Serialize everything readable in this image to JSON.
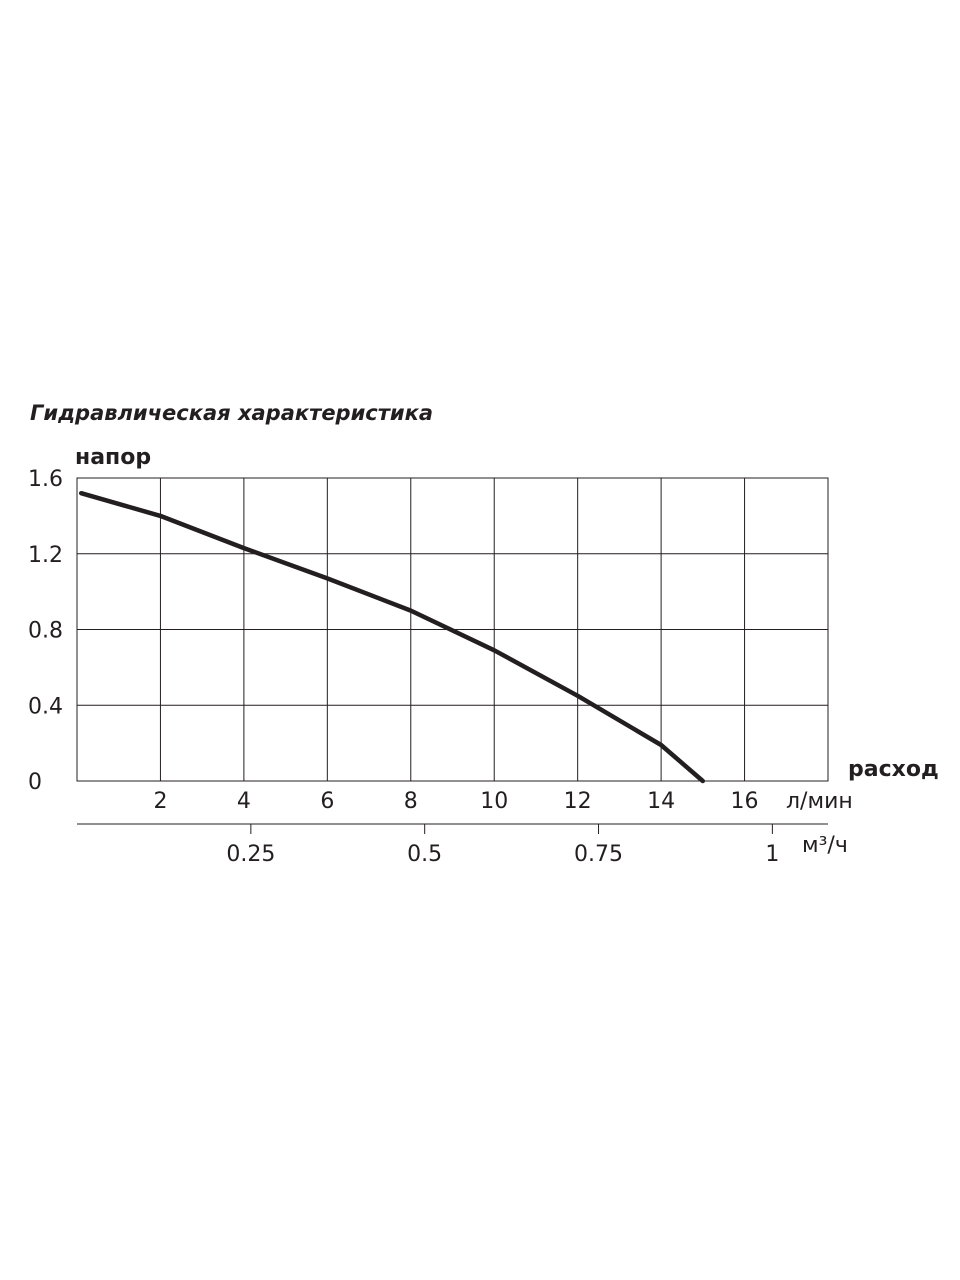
{
  "chart_data": {
    "type": "line",
    "title": "Гидравлическая характеристика",
    "y_label": "напор",
    "x_label": "расход",
    "x_unit": "л/мин",
    "x2_unit": "м³/ч",
    "xlim": [
      0,
      18
    ],
    "xticks": [
      2,
      4,
      6,
      8,
      10,
      12,
      14,
      16
    ],
    "ylim": [
      0,
      1.6
    ],
    "yticks": [
      0,
      0.4,
      0.8,
      1.2,
      1.6
    ],
    "x2lim": [
      0,
      1.08
    ],
    "x2ticks": [
      0.25,
      0.5,
      0.75,
      1
    ],
    "grid": true,
    "series": [
      {
        "color": "#231f20",
        "x": [
          0.1,
          2,
          4,
          6,
          8,
          10,
          12,
          14,
          15
        ],
        "values": [
          1.52,
          1.4,
          1.23,
          1.07,
          0.9,
          0.69,
          0.45,
          0.19,
          0
        ]
      }
    ]
  }
}
